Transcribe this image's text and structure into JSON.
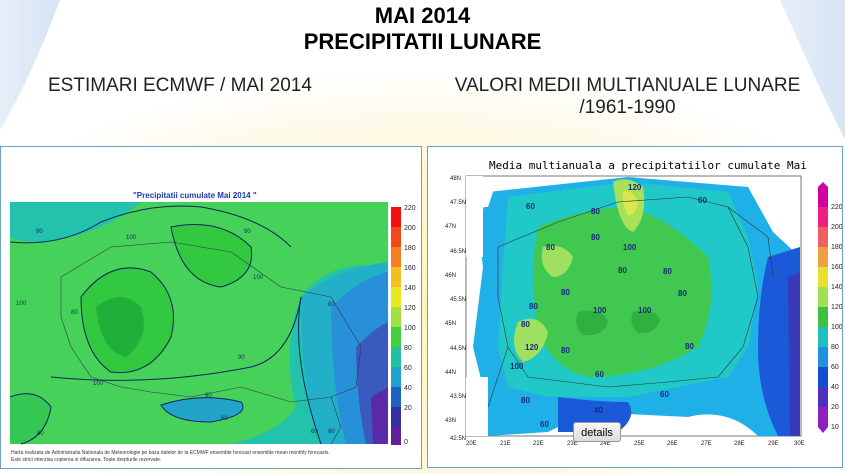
{
  "title_line1": "MAI 2014",
  "title_line2": "PRECIPITATII LUNARE",
  "left_heading": "ESTIMARI ECMWF / MAI 2014",
  "right_heading_line1": "VALORI MEDII MULTIANUALE LUNARE",
  "right_heading_line2": "/1961-1990",
  "left_map": {
    "title": "\"Precipitatii cumulate Mai 2014 \"",
    "footer_line1": "Harta realizata de Administratia Nationala de Meteorologie pe baza datelor de la ECMWF ensemble forecast ensemble mean monthly forecasts.",
    "footer_line2": "Este strict interzisa copierea si difuzarea. Toate drepturile rezervate.",
    "scale_labels": [
      "220",
      "200",
      "180",
      "160",
      "140",
      "120",
      "100",
      "80",
      "60",
      "40",
      "20",
      "0"
    ],
    "scale_colors": [
      "#f01010",
      "#f04a1a",
      "#f08020",
      "#f0c020",
      "#e8e820",
      "#a0e040",
      "#40d040",
      "#20c0a0",
      "#20a0d0",
      "#2060c0",
      "#3030a0",
      "#6020a0"
    ],
    "contour_labels": [
      "90",
      "100",
      "90",
      "80",
      "100",
      "100",
      "80",
      "90",
      "60",
      "60",
      "100",
      "80",
      "60",
      "80"
    ]
  },
  "right_map": {
    "title": "Media multianuala a precipitatiilor cumulate Mai",
    "lat_labels": [
      "48N",
      "47.5N",
      "47N",
      "46.5N",
      "46N",
      "45.5N",
      "45N",
      "44.5N",
      "44N",
      "43.5N",
      "43N",
      "42.5N"
    ],
    "lon_labels": [
      "20E",
      "21E",
      "22E",
      "23E",
      "24E",
      "25E",
      "26E",
      "27E",
      "28E",
      "29E",
      "30E"
    ],
    "scale_labels": [
      "220",
      "200",
      "180",
      "160",
      "140",
      "120",
      "100",
      "80",
      "60",
      "40",
      "20",
      "10"
    ],
    "scale_colors": [
      "#d000a0",
      "#f02080",
      "#f06060",
      "#f0a040",
      "#e8e030",
      "#a0e050",
      "#40c040",
      "#20c0c0",
      "#2090e0",
      "#1050d0",
      "#5030c0",
      "#9020c0"
    ],
    "contour_labels": [
      "120",
      "80",
      "60",
      "60",
      "80",
      "100",
      "80",
      "100",
      "80",
      "80",
      "80",
      "80",
      "100",
      "100",
      "80",
      "80",
      "120",
      "80",
      "100",
      "80",
      "60",
      "60",
      "80",
      "60",
      "40"
    ]
  },
  "details_button": "details"
}
